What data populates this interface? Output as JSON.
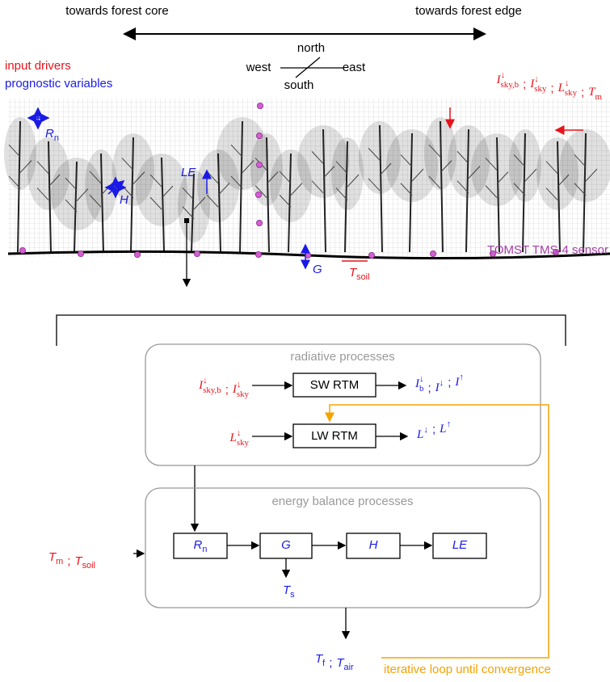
{
  "header": {
    "left": "towards forest core",
    "right": "towards forest edge"
  },
  "compass": {
    "north": "north",
    "west": "west",
    "east": "east",
    "south": "south"
  },
  "legend": {
    "input": "input drivers",
    "prognostic": "prognostic variables"
  },
  "separator": ";",
  "scene": {
    "drivers": [
      {
        "base": "I",
        "sup": "↓",
        "sub": "sky,b"
      },
      {
        "base": "I",
        "sup": "↓",
        "sub": "sky"
      },
      {
        "base": "L",
        "sup": "↓",
        "sub": "sky"
      },
      {
        "base": "T",
        "sub": "m"
      }
    ],
    "rn": {
      "base": "R",
      "sub": "n"
    },
    "h": {
      "base": "H"
    },
    "le": {
      "base": "LE"
    },
    "g": {
      "base": "G"
    },
    "tsoil": {
      "base": "T",
      "sub": "soil"
    },
    "sensor_label": "TOMST TMS-4 sensor"
  },
  "flow": {
    "radiative": {
      "title": "radiative processes",
      "sw_box": "SW RTM",
      "lw_box": "LW RTM",
      "sw_inputs": [
        {
          "base": "I",
          "sup": "↓",
          "sub": "sky,b"
        },
        {
          "base": "I",
          "sup": "↓",
          "sub": "sky"
        }
      ],
      "sw_outputs": [
        {
          "base": "I",
          "sup": "↓",
          "sub": "b"
        },
        {
          "base": "I",
          "sup": "↓"
        },
        {
          "base": "I",
          "sup": "↑"
        }
      ],
      "lw_inputs": [
        {
          "base": "L",
          "sup": "↓",
          "sub": "sky"
        }
      ],
      "lw_outputs": [
        {
          "base": "L",
          "sup": "↓"
        },
        {
          "base": "L",
          "sup": "↑"
        }
      ]
    },
    "energy": {
      "title": "energy balance processes",
      "boxes": [
        {
          "base": "R",
          "sub": "n"
        },
        {
          "base": "G"
        },
        {
          "base": "H"
        },
        {
          "base": "LE"
        }
      ],
      "ts": {
        "base": "T",
        "sub": "s"
      }
    },
    "left_inputs": [
      {
        "base": "T",
        "sub": "m"
      },
      {
        "base": "T",
        "sub": "soil"
      }
    ],
    "outputs": [
      {
        "base": "T",
        "sub": "f"
      },
      {
        "base": "T",
        "sub": "air"
      }
    ],
    "loop": "iterative loop until convergence"
  }
}
